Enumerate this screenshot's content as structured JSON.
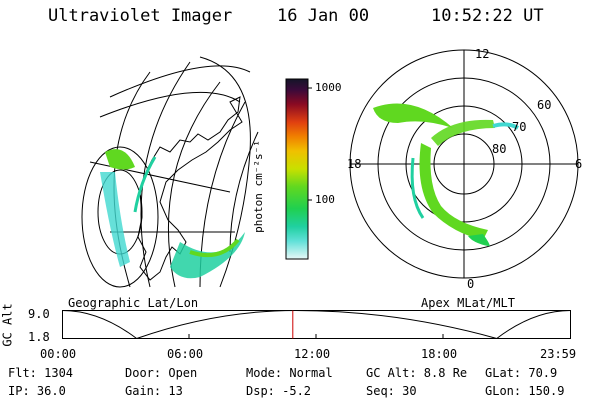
{
  "header": {
    "instrument": "Ultraviolet Imager",
    "date": "16 Jan 00",
    "time": "10:52:22 UT"
  },
  "geo_panel": {
    "label": "Geographic Lat/Lon"
  },
  "colorbar": {
    "unit_label": "photon cm⁻²s⁻¹",
    "ticks": [
      "1000",
      "100"
    ],
    "colors": [
      "#141428",
      "#2a0a3a",
      "#5a0a3a",
      "#8a0a22",
      "#c0141e",
      "#e04010",
      "#f08000",
      "#f0b800",
      "#e8e000",
      "#a8e000",
      "#60d820",
      "#20d050",
      "#20d0a0",
      "#40d8d0",
      "#90e8e8",
      "#d8f4f4"
    ]
  },
  "polar_panel": {
    "label": "Apex MLat/MLT",
    "mlt_labels": [
      "12",
      "18",
      "6",
      "0"
    ],
    "lat_labels": [
      "60",
      "70",
      "80"
    ]
  },
  "orbit_plot": {
    "ylabel": "GC Alt",
    "y_ticks": [
      "9.0",
      "1.8"
    ],
    "x_ticks": [
      "00:00",
      "06:00",
      "12:00",
      "18:00",
      "23:59"
    ]
  },
  "chart_data": {
    "type": "line",
    "ylabel": "GC Alt",
    "x": [
      "00:00",
      "03:30",
      "11:00",
      "20:30",
      "23:59"
    ],
    "values": [
      9.0,
      1.8,
      9.0,
      1.8,
      9.0
    ],
    "ylim": [
      1.8,
      9.0
    ],
    "marker_time": "10:52:22"
  },
  "status": {
    "flt": "Flt: 1304",
    "door": "Door: Open",
    "mode": "Mode: Normal",
    "gc_alt": "GC Alt: 8.8 Re",
    "glat": "GLat:  70.9",
    "ip": "IP: 36.0",
    "gain": "Gain: 13",
    "dsp": "Dsp:   -5.2",
    "seq": "Seq: 30",
    "glon": "GLon: 150.9"
  }
}
